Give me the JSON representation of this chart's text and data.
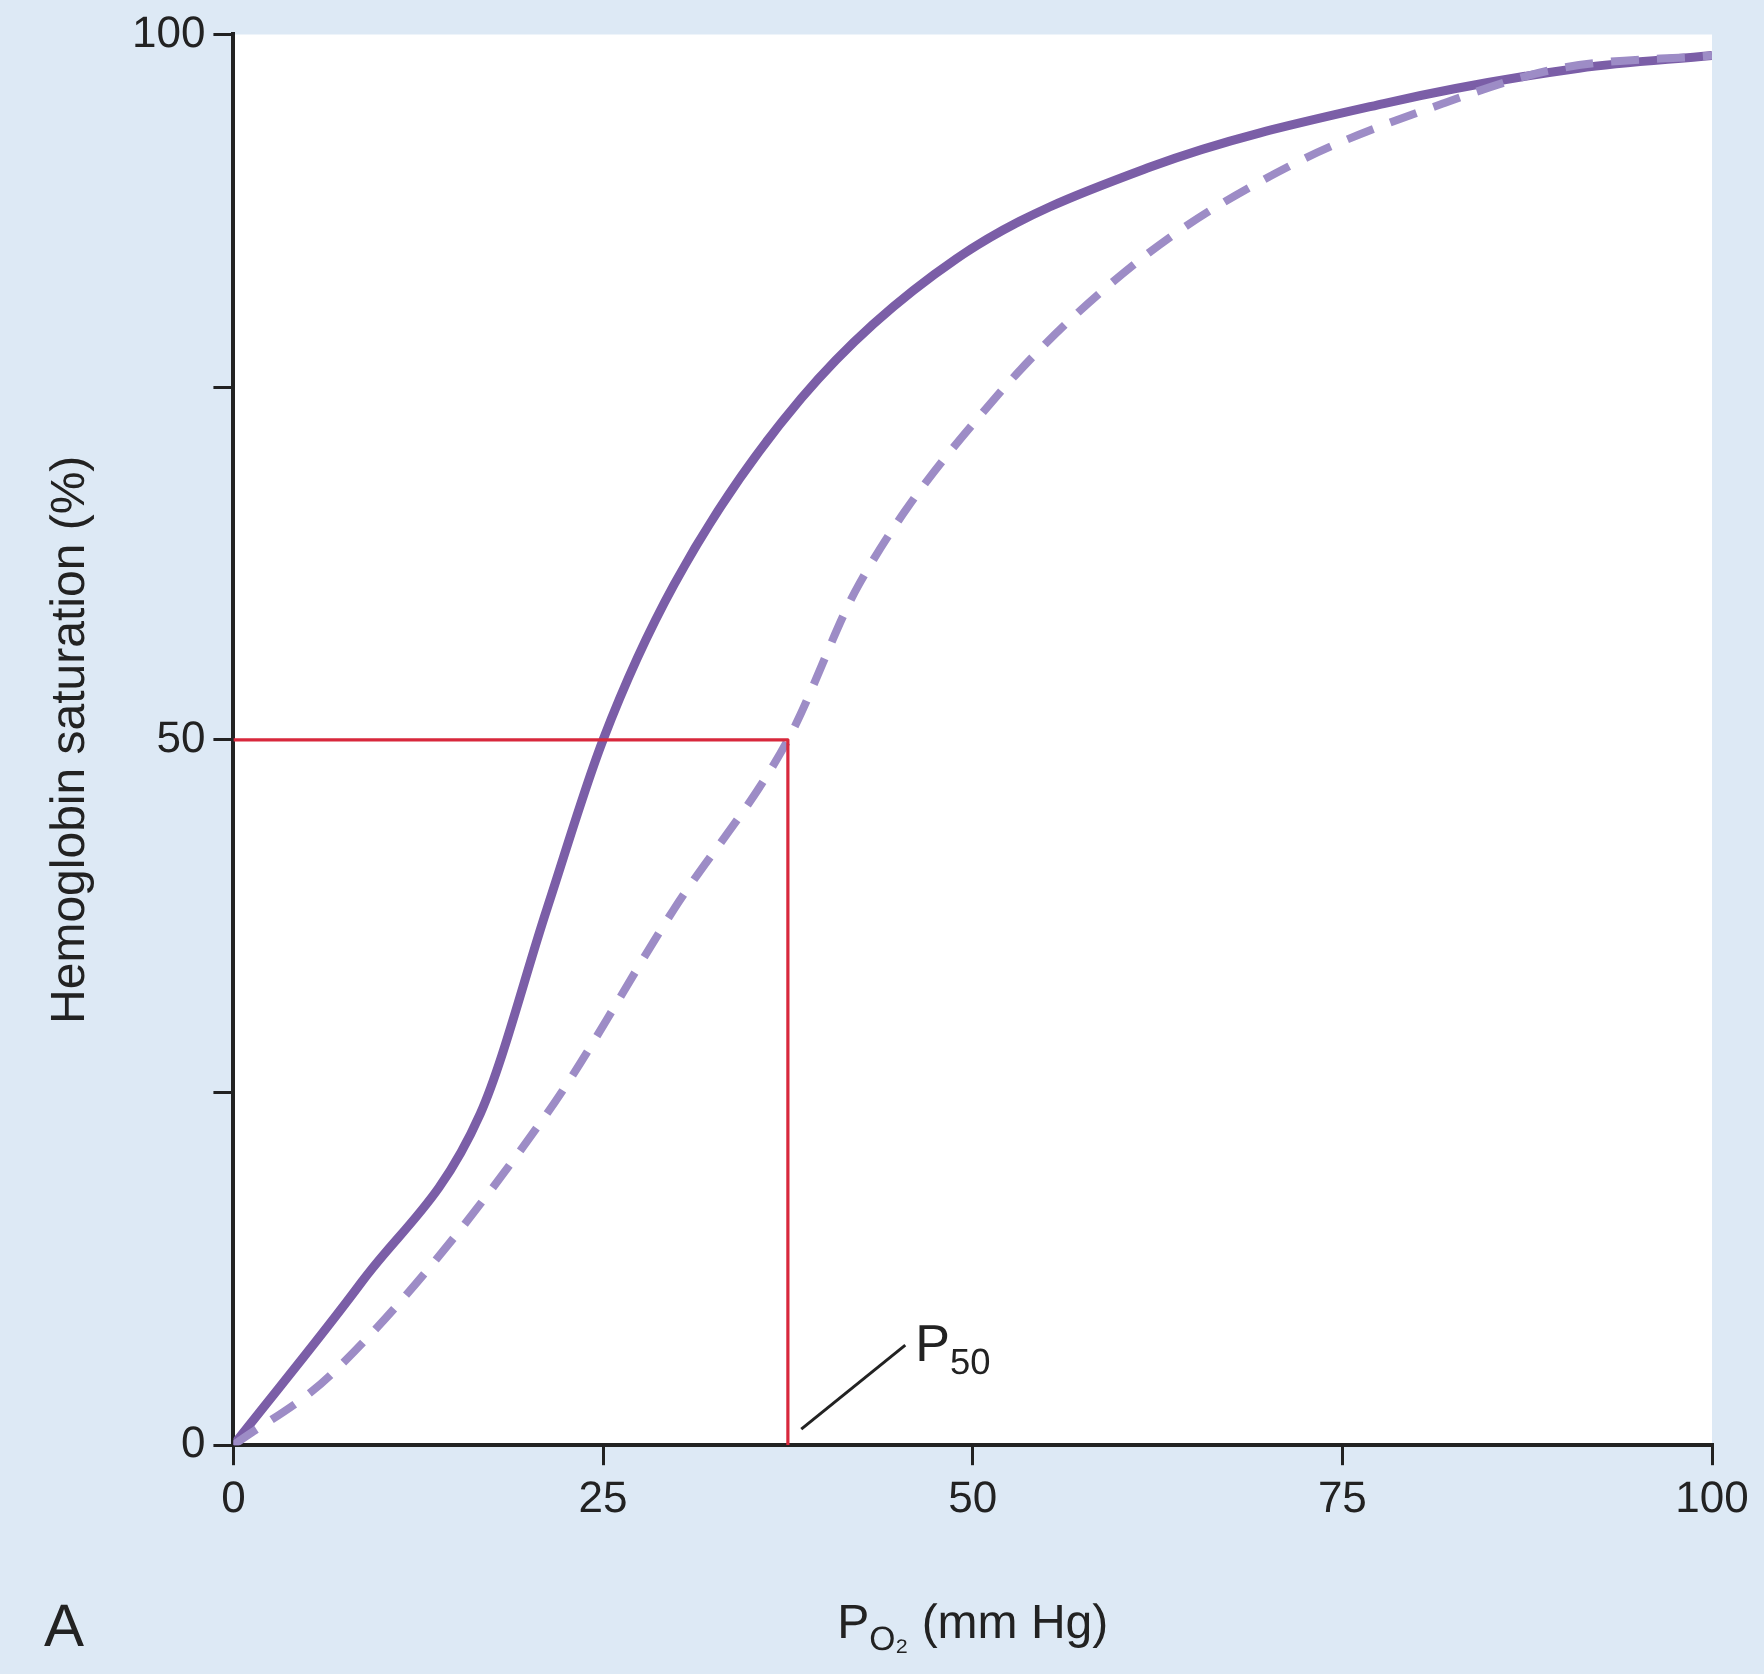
{
  "chart_data": {
    "type": "line",
    "xlabel": "P$_{O₂}$ (mm Hg)",
    "ylabel": "Hemoglobin saturation (%)",
    "xlim": [
      0,
      100
    ],
    "xticks": [
      0,
      25,
      50,
      75,
      100
    ],
    "ylim": [
      0,
      100
    ],
    "yticks": [
      0,
      {
        "value": 25,
        "label": null
      },
      50,
      {
        "value": 75,
        "label": null
      },
      100
    ],
    "grid": false,
    "legend": false,
    "marker": "none",
    "series": [
      {
        "color": "#7b5ea7",
        "line_style": "solid",
        "x": [
          0,
          8.7,
          16.7,
          21.2,
          25,
          29.8,
          38.4,
          48.9,
          62,
          77.8,
          91,
          100
        ],
        "values": [
          0,
          11.6,
          23.5,
          38,
          50,
          61,
          74.2,
          84.1,
          90.6,
          95.1,
          97.6,
          98.5
        ]
      },
      {
        "color": "#9d8cc6",
        "line_style": "dashed",
        "x": [
          0,
          6.7,
          21.2,
          29.8,
          37.5,
          42.3,
          51.5,
          61.4,
          71.3,
          81.8,
          89.7,
          100
        ],
        "values": [
          0,
          5.1,
          23.5,
          38,
          50,
          61,
          74.2,
          84.1,
          90.6,
          95.1,
          97.6,
          98.5
        ]
      },
      {
        "color": "#d8283c",
        "line_style": "solid",
        "x": [
          0,
          37.5,
          37.5
        ],
        "values": [
          50,
          50,
          0
        ]
      }
    ],
    "annotations": [
      "A",
      {
        "text": "P$_{50}$",
        "x": 38,
        "y": 0
      }
    ]
  }
}
